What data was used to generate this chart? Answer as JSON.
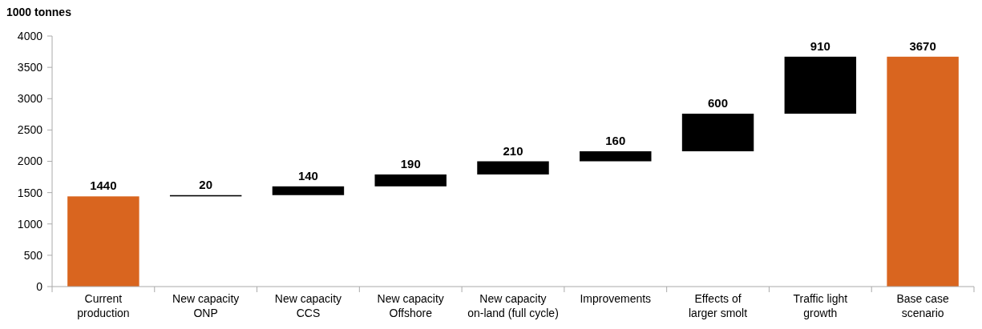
{
  "chart_data": {
    "type": "bar",
    "ylabel": "1000 tonnes",
    "categories": [
      "Current\nproduction",
      "New capacity\nONP",
      "New capacity\nCCS",
      "New capacity\nOffshore",
      "New capacity\non-land (full cycle)",
      "Improvements",
      "Effects of\nlarger smolt",
      "Traffic light\ngrowth",
      "Base case\nscenario"
    ],
    "values": [
      1440,
      20,
      140,
      190,
      210,
      160,
      600,
      910,
      3670
    ],
    "base": [
      0,
      1440,
      1460,
      1600,
      1790,
      2000,
      2160,
      2760,
      0
    ],
    "colors": [
      "#d9651f",
      "#000000",
      "#000000",
      "#000000",
      "#000000",
      "#000000",
      "#000000",
      "#000000",
      "#d9651f"
    ],
    "ylim": [
      0,
      4000
    ],
    "yticks": [
      0,
      500,
      1000,
      1500,
      2000,
      2500,
      3000,
      3500,
      4000
    ],
    "data_labels": true,
    "grid": false
  }
}
